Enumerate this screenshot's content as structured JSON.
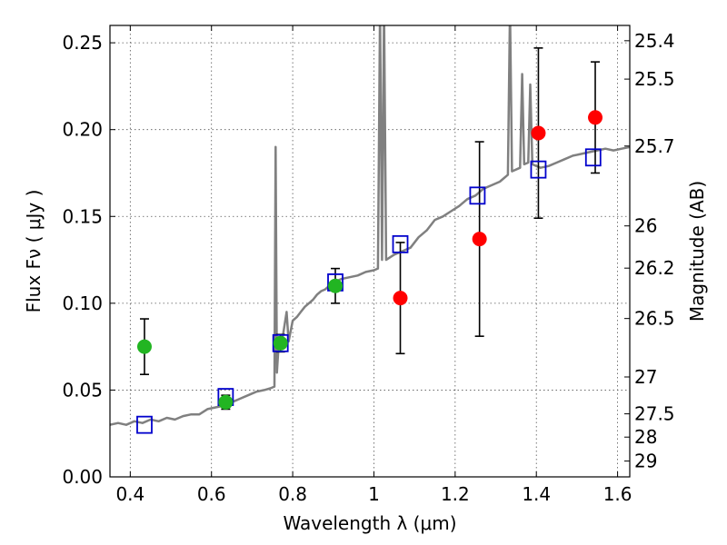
{
  "chart_data": {
    "type": "scatter",
    "xlabel": "Wavelength  λ (μm)",
    "ylabel": "Flux  Fν  ( μJy )",
    "y2label": "Magnitude (AB)",
    "xlim": [
      0.35,
      1.63
    ],
    "ylim": [
      0.0,
      0.26
    ],
    "grid": true,
    "x_ticks": [
      {
        "value": 0.4,
        "label": "0.4"
      },
      {
        "value": 0.6,
        "label": "0.6"
      },
      {
        "value": 0.8,
        "label": "0.8"
      },
      {
        "value": 1.0,
        "label": "1"
      },
      {
        "value": 1.2,
        "label": "1.2"
      },
      {
        "value": 1.4,
        "label": "1.4"
      },
      {
        "value": 1.6,
        "label": "1.6"
      }
    ],
    "y_ticks": [
      {
        "value": 0.0,
        "label": "0.00"
      },
      {
        "value": 0.05,
        "label": "0.05"
      },
      {
        "value": 0.1,
        "label": "0.10"
      },
      {
        "value": 0.15,
        "label": "0.15"
      },
      {
        "value": 0.2,
        "label": "0.20"
      },
      {
        "value": 0.25,
        "label": "0.25"
      }
    ],
    "mag_ticks": [
      {
        "mag": 25.4,
        "label": "25.4"
      },
      {
        "mag": 25.5,
        "label": "25.5"
      },
      {
        "mag": 25.7,
        "label": "25.7"
      },
      {
        "mag": 26.0,
        "label": "26"
      },
      {
        "mag": 26.2,
        "label": "26.2"
      },
      {
        "mag": 26.5,
        "label": "26.5"
      },
      {
        "mag": 27.0,
        "label": "27"
      },
      {
        "mag": 27.5,
        "label": "27.5"
      },
      {
        "mag": 28.0,
        "label": "28"
      },
      {
        "mag": 29.0,
        "label": "29"
      }
    ],
    "series": [
      {
        "kind": "model_spectrum",
        "color": "#808080",
        "points": [
          [
            0.35,
            0.03
          ],
          [
            0.37,
            0.031
          ],
          [
            0.39,
            0.03
          ],
          [
            0.41,
            0.032
          ],
          [
            0.43,
            0.031
          ],
          [
            0.45,
            0.033
          ],
          [
            0.47,
            0.032
          ],
          [
            0.49,
            0.034
          ],
          [
            0.51,
            0.033
          ],
          [
            0.53,
            0.035
          ],
          [
            0.55,
            0.036
          ],
          [
            0.57,
            0.036
          ],
          [
            0.59,
            0.039
          ],
          [
            0.61,
            0.04
          ],
          [
            0.63,
            0.041
          ],
          [
            0.65,
            0.043
          ],
          [
            0.67,
            0.045
          ],
          [
            0.69,
            0.047
          ],
          [
            0.71,
            0.049
          ],
          [
            0.73,
            0.05
          ],
          [
            0.745,
            0.051
          ],
          [
            0.755,
            0.052
          ],
          [
            0.758,
            0.19
          ],
          [
            0.761,
            0.06
          ],
          [
            0.765,
            0.075
          ],
          [
            0.775,
            0.08
          ],
          [
            0.785,
            0.095
          ],
          [
            0.79,
            0.078
          ],
          [
            0.8,
            0.09
          ],
          [
            0.81,
            0.092
          ],
          [
            0.82,
            0.095
          ],
          [
            0.83,
            0.098
          ],
          [
            0.84,
            0.1
          ],
          [
            0.85,
            0.102
          ],
          [
            0.86,
            0.105
          ],
          [
            0.87,
            0.107
          ],
          [
            0.88,
            0.108
          ],
          [
            0.89,
            0.11
          ],
          [
            0.9,
            0.112
          ],
          [
            0.92,
            0.114
          ],
          [
            0.94,
            0.115
          ],
          [
            0.96,
            0.116
          ],
          [
            0.98,
            0.118
          ],
          [
            1.0,
            0.119
          ],
          [
            1.01,
            0.12
          ],
          [
            1.015,
            0.27
          ],
          [
            1.02,
            0.125
          ],
          [
            1.025,
            0.27
          ],
          [
            1.03,
            0.125
          ],
          [
            1.05,
            0.128
          ],
          [
            1.07,
            0.13
          ],
          [
            1.09,
            0.132
          ],
          [
            1.11,
            0.138
          ],
          [
            1.13,
            0.142
          ],
          [
            1.15,
            0.148
          ],
          [
            1.17,
            0.15
          ],
          [
            1.19,
            0.153
          ],
          [
            1.21,
            0.156
          ],
          [
            1.23,
            0.16
          ],
          [
            1.25,
            0.162
          ],
          [
            1.27,
            0.166
          ],
          [
            1.29,
            0.168
          ],
          [
            1.31,
            0.17
          ],
          [
            1.33,
            0.174
          ],
          [
            1.335,
            0.27
          ],
          [
            1.34,
            0.176
          ],
          [
            1.36,
            0.178
          ],
          [
            1.365,
            0.232
          ],
          [
            1.37,
            0.18
          ],
          [
            1.38,
            0.181
          ],
          [
            1.385,
            0.226
          ],
          [
            1.39,
            0.18
          ],
          [
            1.41,
            0.178
          ],
          [
            1.43,
            0.179
          ],
          [
            1.45,
            0.181
          ],
          [
            1.47,
            0.183
          ],
          [
            1.49,
            0.185
          ],
          [
            1.51,
            0.186
          ],
          [
            1.53,
            0.187
          ],
          [
            1.55,
            0.188
          ],
          [
            1.57,
            0.189
          ],
          [
            1.59,
            0.188
          ],
          [
            1.61,
            0.189
          ],
          [
            1.63,
            0.19
          ]
        ]
      },
      {
        "kind": "model_photometry",
        "color": "#0000cc",
        "marker": "open-square",
        "points": [
          {
            "x": 0.435,
            "y": 0.03
          },
          {
            "x": 0.635,
            "y": 0.046
          },
          {
            "x": 0.77,
            "y": 0.077
          },
          {
            "x": 0.905,
            "y": 0.112
          },
          {
            "x": 1.065,
            "y": 0.134
          },
          {
            "x": 1.255,
            "y": 0.162
          },
          {
            "x": 1.405,
            "y": 0.177
          },
          {
            "x": 1.54,
            "y": 0.184
          }
        ]
      },
      {
        "kind": "observed_detections",
        "color": "#22b522",
        "marker": "filled-circle",
        "points": [
          {
            "x": 0.435,
            "y": 0.075,
            "err": 0.016
          },
          {
            "x": 0.635,
            "y": 0.043,
            "err": 0.004
          },
          {
            "x": 0.77,
            "y": 0.077,
            "err": 0.005
          },
          {
            "x": 0.905,
            "y": 0.11,
            "err": 0.01
          }
        ]
      },
      {
        "kind": "observed_nir",
        "color": "#ff0000",
        "marker": "filled-circle",
        "points": [
          {
            "x": 1.065,
            "y": 0.103,
            "err": 0.032
          },
          {
            "x": 1.26,
            "y": 0.137,
            "err": 0.056
          },
          {
            "x": 1.405,
            "y": 0.198,
            "err": 0.049
          },
          {
            "x": 1.545,
            "y": 0.207,
            "err": 0.032
          }
        ]
      }
    ]
  }
}
